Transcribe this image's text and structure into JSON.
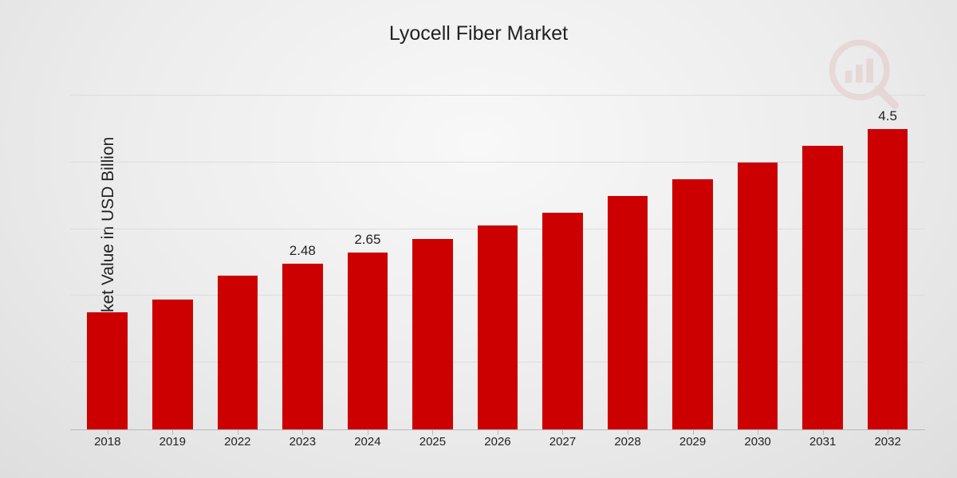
{
  "chart": {
    "type": "bar",
    "title": "Lyocell Fiber Market",
    "title_fontsize": 25,
    "ylabel": "Market Value in USD Billion",
    "ylabel_fontsize": 21,
    "categories": [
      "2018",
      "2019",
      "2022",
      "2023",
      "2024",
      "2025",
      "2026",
      "2027",
      "2028",
      "2029",
      "2030",
      "2031",
      "2032"
    ],
    "values": [
      1.75,
      1.95,
      2.3,
      2.48,
      2.65,
      2.85,
      3.05,
      3.25,
      3.5,
      3.75,
      4.0,
      4.25,
      4.5
    ],
    "value_labels": [
      "",
      "",
      "",
      "2.48",
      "2.65",
      "",
      "",
      "",
      "",
      "",
      "",
      "",
      "4.5"
    ],
    "bar_color": "#cc0000",
    "bar_width": 0.62,
    "ylim": [
      0,
      5.0
    ],
    "grid_steps": [
      0.2,
      0.4,
      0.6,
      0.8,
      1.0
    ],
    "grid_color": "#dcdcdc",
    "axis_color": "#b9b9b9",
    "background": "radial-gradient(ellipse at 50% 30%, #f8f8f8 0%, #ececec 55%, #dedede 100%)",
    "xaxis_fontsize": 15,
    "bar_label_fontsize": 17,
    "text_color": "#222222",
    "watermark": {
      "name": "logo-bars-magnifier",
      "color": "#c40000",
      "opacity": 0.08
    }
  }
}
